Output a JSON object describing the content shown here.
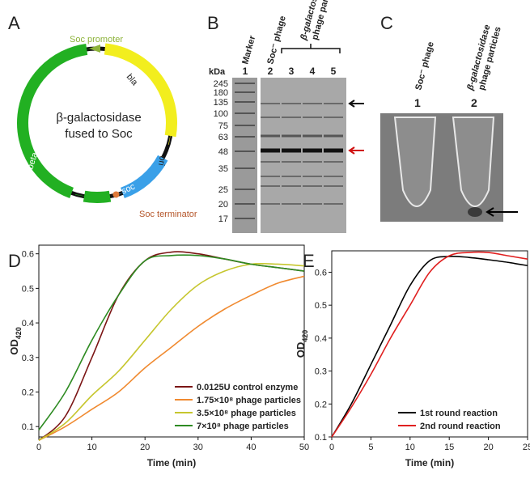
{
  "panel_a": {
    "label": "A",
    "promoter": "Soc promoter",
    "bla": "bla",
    "ori": "ori",
    "lacz": "beta-galactosidase",
    "soc": "soc",
    "terminator": "Soc terminator",
    "center": [
      "β-galactosidase",
      "fused to Soc"
    ]
  },
  "panel_b": {
    "label": "B",
    "lanes": [
      "Marker",
      "Soc⁻ phage",
      "β-galactosidase",
      "phage particles"
    ],
    "lane_numbers": [
      "1",
      "2",
      "3",
      "4",
      "5"
    ],
    "unit": "kDa",
    "marker_sizes": [
      245,
      180,
      135,
      100,
      75,
      63,
      48,
      35,
      25,
      20,
      17
    ]
  },
  "panel_c": {
    "label": "C",
    "lanes": [
      "Soc⁻ phage",
      "β-galactosidase",
      "phage particles"
    ],
    "lane_numbers": [
      "1",
      "2"
    ]
  },
  "chart_data": [
    {
      "type": "line",
      "title": "D",
      "x_label": "Time (min)",
      "y_label": "OD",
      "y_label_sub": "420",
      "x": [
        0,
        5,
        10,
        15,
        20,
        25,
        30,
        35,
        40,
        45,
        50
      ],
      "xlim": [
        0,
        50
      ],
      "xticks": [
        0,
        10,
        20,
        30,
        40,
        50
      ],
      "ylim": [
        0.07,
        0.625
      ],
      "yticks": [
        0.1,
        0.2,
        0.3,
        0.4,
        0.5,
        0.6
      ],
      "legend": "lower right",
      "series": [
        {
          "name": "0.0125U control enzyme",
          "color": "#7b1515",
          "values": [
            0.06,
            0.13,
            0.3,
            0.48,
            0.58,
            0.605,
            0.6,
            0.585,
            0.57,
            0.56,
            0.55
          ]
        },
        {
          "name": "1.75×10⁸ phage particles",
          "color": "#f08a30",
          "values": [
            0.06,
            0.1,
            0.15,
            0.2,
            0.27,
            0.33,
            0.39,
            0.44,
            0.48,
            0.515,
            0.535
          ]
        },
        {
          "name": "3.5×10⁸ phage particles",
          "color": "#c6c62e",
          "values": [
            0.06,
            0.11,
            0.19,
            0.26,
            0.35,
            0.44,
            0.51,
            0.55,
            0.57,
            0.57,
            0.565
          ]
        },
        {
          "name": "7×10⁸ phage particles",
          "color": "#2e8b22",
          "values": [
            0.09,
            0.2,
            0.35,
            0.48,
            0.58,
            0.595,
            0.595,
            0.585,
            0.57,
            0.56,
            0.55
          ]
        }
      ]
    },
    {
      "type": "line",
      "title": "E",
      "x_label": "Time (min)",
      "y_label": "OD",
      "y_label_sub": "420",
      "x": [
        0,
        2.5,
        5,
        7.5,
        10,
        12.5,
        15,
        17.5,
        20,
        22.5,
        25
      ],
      "xlim": [
        0,
        25
      ],
      "xticks": [
        0,
        5,
        10,
        15,
        20,
        25
      ],
      "ylim": [
        0.1,
        0.665
      ],
      "yticks": [
        0.1,
        0.2,
        0.3,
        0.4,
        0.5,
        0.6
      ],
      "legend": "lower right",
      "series": [
        {
          "name": "1st round reaction",
          "color": "#000000",
          "values": [
            0.1,
            0.2,
            0.32,
            0.44,
            0.56,
            0.635,
            0.648,
            0.645,
            0.638,
            0.63,
            0.62
          ]
        },
        {
          "name": "2nd round reaction",
          "color": "#e02020",
          "values": [
            0.1,
            0.19,
            0.29,
            0.4,
            0.5,
            0.6,
            0.65,
            0.66,
            0.66,
            0.65,
            0.64
          ]
        }
      ]
    }
  ]
}
